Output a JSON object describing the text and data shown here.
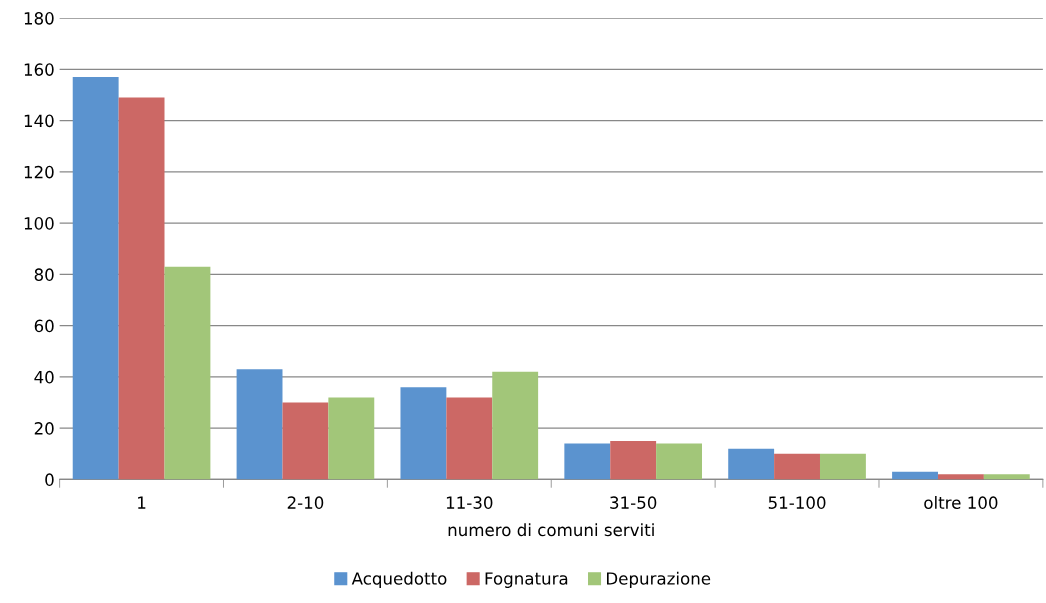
{
  "chart_data": {
    "type": "bar",
    "xlabel": "numero di comuni serviti",
    "categories": [
      "1",
      "2-10",
      "11-30",
      "31-50",
      "51-100",
      "oltre 100"
    ],
    "series": [
      {
        "name": "Acquedotto",
        "color": "#5b93cf",
        "values": [
          157,
          43,
          36,
          14,
          12,
          3
        ]
      },
      {
        "name": "Fognatura",
        "color": "#cc6865",
        "values": [
          149,
          30,
          32,
          15,
          10,
          2
        ]
      },
      {
        "name": "Depurazione",
        "color": "#a2c679",
        "values": [
          83,
          32,
          42,
          14,
          10,
          2
        ]
      }
    ],
    "ylim": [
      0,
      180
    ],
    "yticks": [
      0,
      20,
      40,
      60,
      80,
      100,
      120,
      140,
      160,
      180
    ],
    "grid": "y",
    "legend": "bottom"
  }
}
